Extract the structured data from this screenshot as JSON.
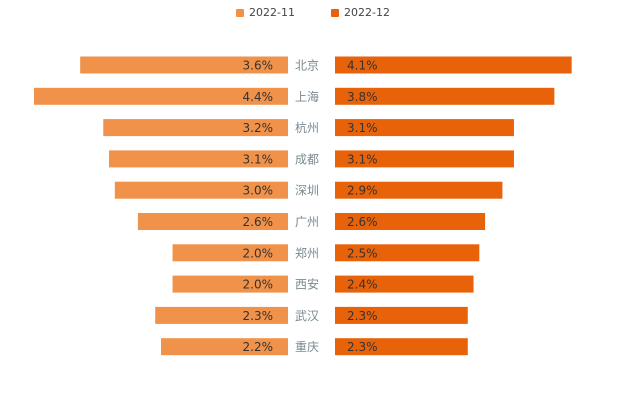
{
  "chart_data": {
    "type": "bar",
    "title": "",
    "categories": [
      "北京",
      "上海",
      "杭州",
      "成都",
      "深圳",
      "广州",
      "郑州",
      "西安",
      "武汉",
      "重庆"
    ],
    "series": [
      {
        "name": "2022-11",
        "color": "#F0924A",
        "values": [
          3.6,
          4.4,
          3.2,
          3.1,
          3.0,
          2.6,
          2.0,
          2.0,
          2.3,
          2.2
        ],
        "labels": [
          "3.6%",
          "4.4%",
          "3.2%",
          "3.1%",
          "3.0%",
          "2.6%",
          "2.0%",
          "2.0%",
          "2.3%",
          "2.2%"
        ]
      },
      {
        "name": "2022-12",
        "color": "#E8620A",
        "values": [
          4.1,
          3.8,
          3.1,
          3.1,
          2.9,
          2.6,
          2.5,
          2.4,
          2.3,
          2.3
        ],
        "labels": [
          "4.1%",
          "3.8%",
          "3.1%",
          "3.1%",
          "2.9%",
          "2.6%",
          "2.5%",
          "2.4%",
          "2.3%",
          "2.3%"
        ]
      }
    ],
    "xlim": [
      0,
      4.4
    ],
    "layout": "mirrored-horizontal-bars",
    "legend_position": "top-center",
    "grid": false
  },
  "colors": {
    "category_label": "#7a8a90",
    "value_label": "#333333"
  }
}
